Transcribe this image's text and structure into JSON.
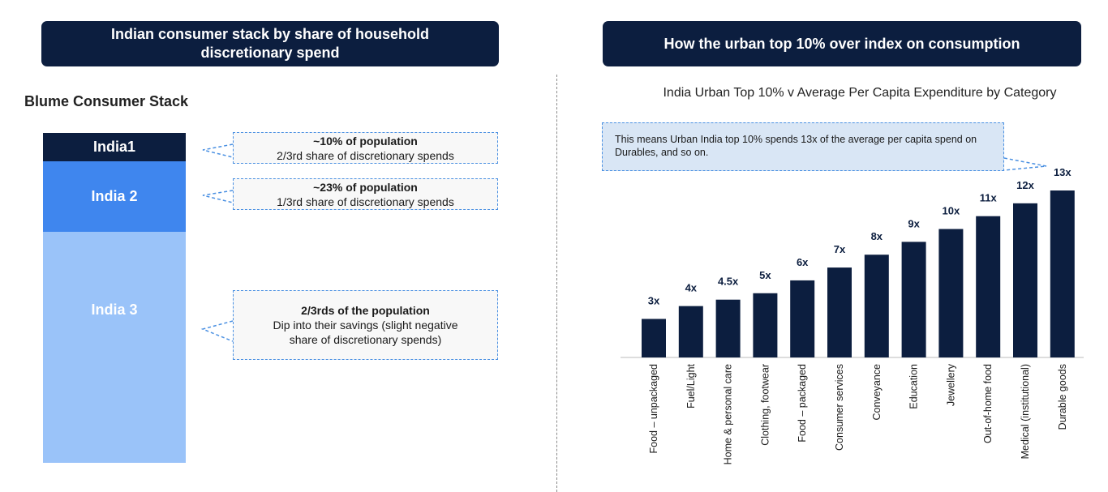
{
  "left": {
    "header": "Indian consumer stack by share of household discretionary spend",
    "stack_title": "Blume Consumer Stack",
    "segments": [
      {
        "label": "India1"
      },
      {
        "label": "India 2"
      },
      {
        "label": "India 3"
      }
    ],
    "callouts": [
      {
        "heading": "~10% of population",
        "text": "2/3rd share of discretionary spends"
      },
      {
        "heading": "~23% of population",
        "text": "1/3rd share of discretionary spends"
      },
      {
        "heading": "2/3rds of the population",
        "text": "Dip into their savings (slight negative share of discretionary spends)"
      }
    ]
  },
  "right": {
    "header": "How the urban top 10% over index on consumption",
    "note": "This means Urban India top 10% spends 13x of the average per capita spend  on Durables, and so on."
  },
  "colors": {
    "dark_navy": "#0c1e3f",
    "mid_blue": "#3f86ee",
    "light_blue": "#9ac3f9",
    "callout_border": "#4a90e2",
    "note_bg": "#d9e6f5"
  },
  "chart_data": {
    "type": "bar",
    "title": "India Urban Top 10% v Average Per Capita Expenditure by Category",
    "categories": [
      "Food – unpackaged",
      "Fuel/Light",
      "Home & personal care",
      "Clothing, footwear",
      "Food – packaged",
      "Consumer services",
      "Conveyance",
      "Education",
      "Jewellery",
      "Out-of-home food",
      "Medical (institutional)",
      "Durable goods"
    ],
    "values": [
      3,
      4,
      4.5,
      5,
      6,
      7,
      8,
      9,
      10,
      11,
      12,
      13
    ],
    "data_labels": [
      "3x",
      "4x",
      "4.5x",
      "5x",
      "6x",
      "7x",
      "8x",
      "9x",
      "10x",
      "11x",
      "12x",
      "13x"
    ],
    "xlabel": "",
    "ylabel": "",
    "ylim": [
      0,
      13
    ]
  }
}
